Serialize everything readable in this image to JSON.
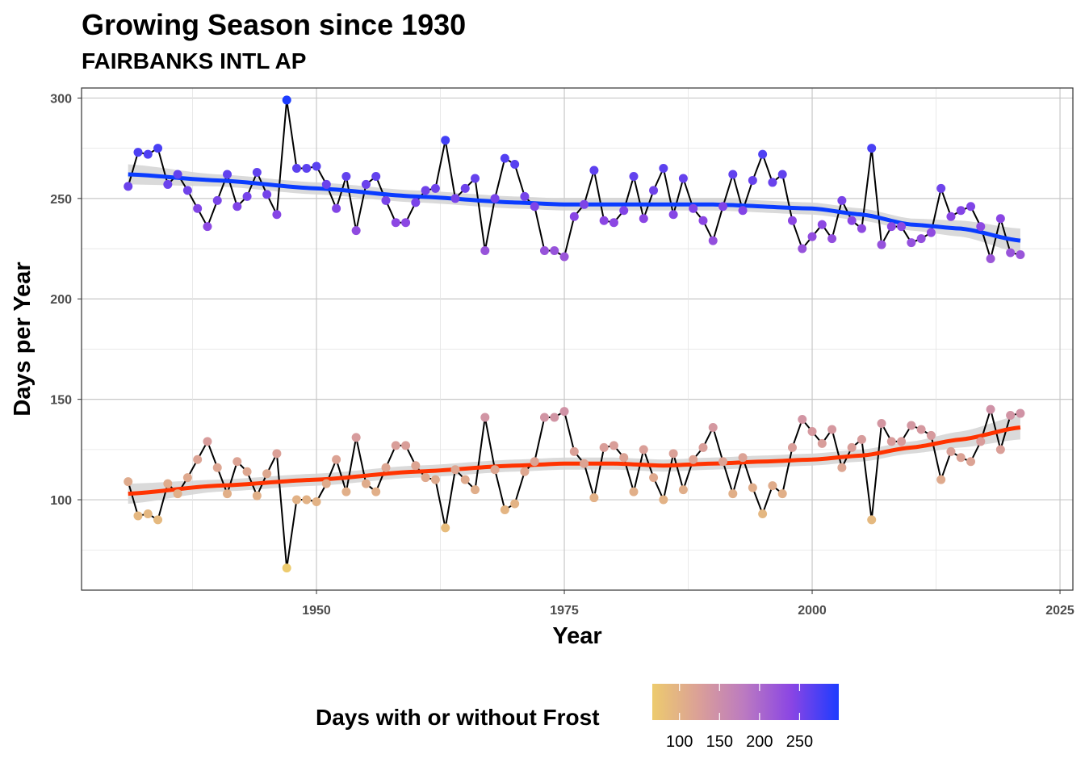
{
  "chart_data": {
    "type": "line",
    "title": "Growing Season since 1930",
    "subtitle": "FAIRBANKS INTL AP",
    "xlabel": "Year",
    "ylabel": "Days per Year",
    "xlim": [
      1926.3,
      2026.3
    ],
    "ylim": [
      55,
      305
    ],
    "x_ticks": [
      1950,
      1975,
      2000,
      2025
    ],
    "y_ticks": [
      100,
      150,
      200,
      250,
      300
    ],
    "grid": true,
    "x": [
      1931,
      1932,
      1933,
      1934,
      1935,
      1936,
      1937,
      1938,
      1939,
      1940,
      1941,
      1942,
      1943,
      1944,
      1945,
      1946,
      1947,
      1948,
      1949,
      1950,
      1951,
      1952,
      1953,
      1954,
      1955,
      1956,
      1957,
      1958,
      1959,
      1960,
      1961,
      1962,
      1963,
      1964,
      1965,
      1966,
      1967,
      1968,
      1969,
      1970,
      1971,
      1972,
      1973,
      1974,
      1975,
      1976,
      1977,
      1978,
      1979,
      1980,
      1981,
      1982,
      1983,
      1984,
      1985,
      1986,
      1987,
      1988,
      1989,
      1990,
      1991,
      1992,
      1993,
      1994,
      1995,
      1996,
      1997,
      1998,
      1999,
      2000,
      2001,
      2002,
      2003,
      2004,
      2005,
      2006,
      2007,
      2008,
      2009,
      2010,
      2011,
      2012,
      2013,
      2014,
      2015,
      2016,
      2017,
      2018,
      2019,
      2020,
      2021
    ],
    "series": [
      {
        "name": "Days without Frost",
        "trend_color": "#0A3CFF",
        "values": [
          256,
          273,
          272,
          275,
          257,
          262,
          254,
          245,
          236,
          249,
          262,
          246,
          251,
          263,
          252,
          242,
          299,
          265,
          265,
          266,
          257,
          245,
          261,
          234,
          257,
          261,
          249,
          238,
          238,
          248,
          254,
          255,
          279,
          250,
          255,
          260,
          224,
          250,
          270,
          267,
          251,
          246,
          224,
          224,
          221,
          241,
          247,
          264,
          239,
          238,
          244,
          261,
          240,
          254,
          265,
          242,
          260,
          245,
          239,
          229,
          246,
          262,
          244,
          259,
          272,
          258,
          262,
          239,
          225,
          231,
          237,
          230,
          249,
          239,
          235,
          275,
          227,
          236,
          236,
          228,
          230,
          233,
          255,
          241,
          244,
          246,
          236,
          220,
          240,
          223,
          222
        ],
        "smooth": {
          "x": [
            1931,
            1940,
            1950,
            1960,
            1970,
            1975,
            1980,
            1990,
            2000,
            2005,
            2010,
            2015,
            2021
          ],
          "y": [
            262,
            259,
            255,
            251,
            248,
            247,
            247,
            247,
            245,
            242,
            237,
            235,
            229
          ],
          "band": [
            5,
            3,
            3,
            3,
            3,
            3,
            3,
            3,
            3,
            3,
            3,
            4,
            6
          ]
        }
      },
      {
        "name": "Days with Frost",
        "trend_color": "#FF3300",
        "values": [
          109,
          92,
          93,
          90,
          108,
          103,
          111,
          120,
          129,
          116,
          103,
          119,
          114,
          102,
          113,
          123,
          66,
          100,
          100,
          99,
          108,
          120,
          104,
          131,
          108,
          104,
          116,
          127,
          127,
          117,
          111,
          110,
          86,
          115,
          110,
          105,
          141,
          115,
          95,
          98,
          114,
          119,
          141,
          141,
          144,
          124,
          118,
          101,
          126,
          127,
          121,
          104,
          125,
          111,
          100,
          123,
          105,
          120,
          126,
          136,
          119,
          103,
          121,
          106,
          93,
          107,
          103,
          126,
          140,
          134,
          128,
          135,
          116,
          126,
          130,
          90,
          138,
          129,
          129,
          137,
          135,
          132,
          110,
          124,
          121,
          119,
          129,
          145,
          125,
          142,
          143
        ],
        "smooth": {
          "x": [
            1931,
            1940,
            1950,
            1960,
            1970,
            1975,
            1980,
            1985,
            1990,
            1995,
            2000,
            2005,
            2010,
            2015,
            2021
          ],
          "y": [
            103,
            107,
            110,
            114,
            117,
            118,
            118,
            117,
            118,
            119,
            120,
            122,
            126,
            130,
            136
          ],
          "band": [
            5,
            3,
            3,
            3,
            3,
            3,
            3,
            3,
            3,
            3,
            3,
            3,
            3,
            4,
            6
          ]
        }
      }
    ],
    "legend": {
      "title": "Days with or without Frost",
      "placement": "bottom",
      "range": [
        66,
        299
      ],
      "ticks": [
        "100",
        "150",
        "200",
        "250"
      ],
      "color_stops": [
        [
          66,
          "#EDCB6E"
        ],
        [
          125,
          "#DA9F98"
        ],
        [
          180,
          "#BC7BC0"
        ],
        [
          240,
          "#8A45E4"
        ],
        [
          299,
          "#1D3CFF"
        ]
      ]
    }
  }
}
